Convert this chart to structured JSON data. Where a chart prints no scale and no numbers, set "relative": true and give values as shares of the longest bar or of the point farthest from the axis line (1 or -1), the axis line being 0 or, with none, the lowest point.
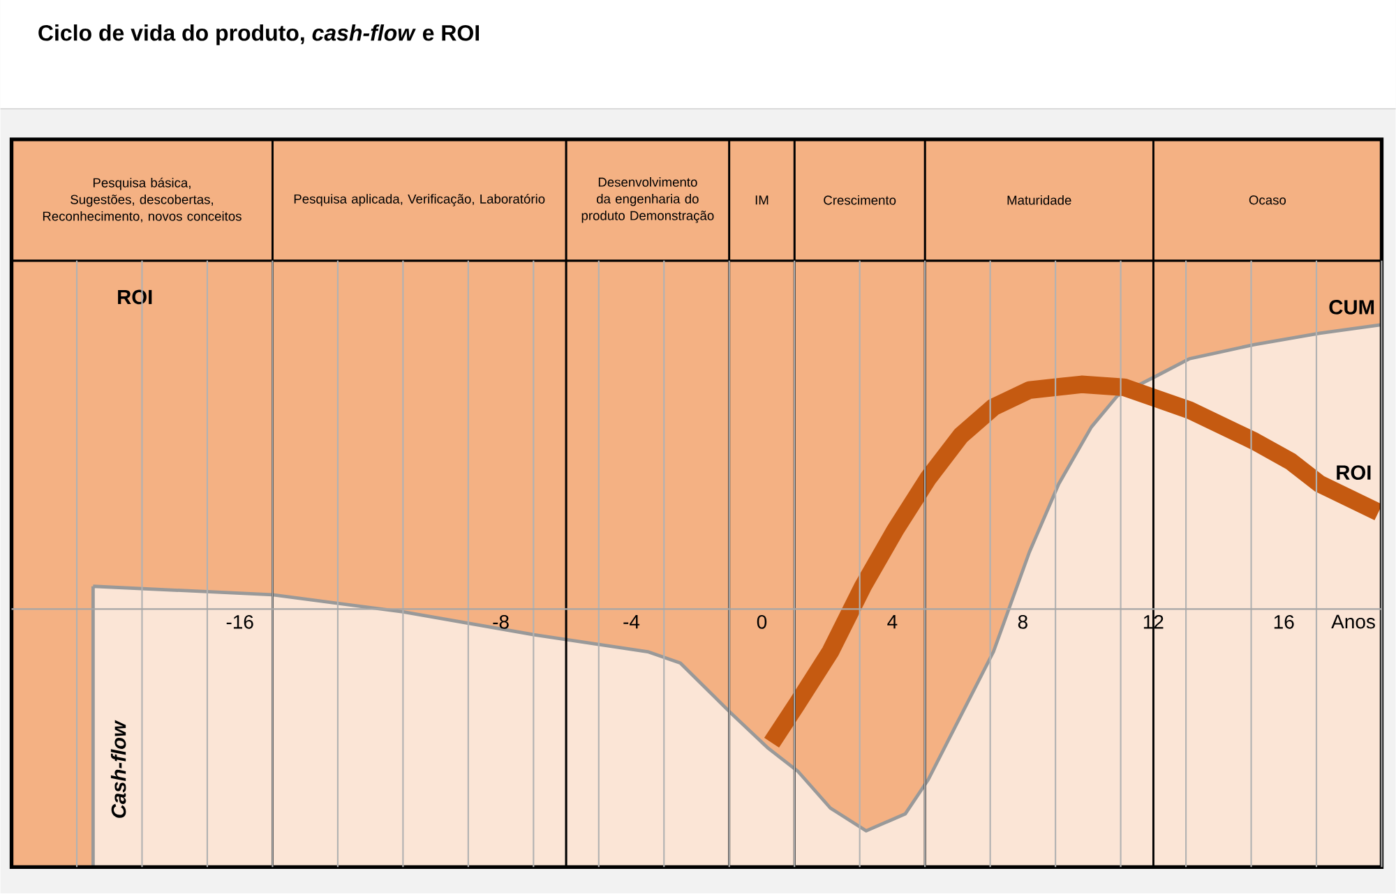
{
  "chart_data": {
    "type": "line",
    "title": "Ciclo de vida do produto, *cash-flow* e ROI",
    "xlabel": "Anos",
    "relative": true,
    "grid": "x",
    "xlim": [
      -23,
      19
    ],
    "xticks": [
      {
        "value": -21,
        "label": null
      },
      {
        "value": -19,
        "label": null
      },
      {
        "value": -17,
        "label": null
      },
      -16,
      {
        "value": -15,
        "label": null
      },
      {
        "value": -13,
        "label": null
      },
      {
        "value": -11,
        "label": null
      },
      {
        "value": -9,
        "label": null
      },
      -8,
      {
        "value": -7,
        "label": null
      },
      {
        "value": -5,
        "label": null
      },
      -4,
      {
        "value": -3,
        "label": null
      },
      {
        "value": -1,
        "label": null
      },
      0,
      {
        "value": 1,
        "label": null
      },
      {
        "value": 3,
        "label": null
      },
      4,
      {
        "value": 5,
        "label": null
      },
      {
        "value": 7,
        "label": null
      },
      8,
      {
        "value": 9,
        "label": null
      },
      {
        "value": 11,
        "label": null
      },
      12,
      {
        "value": 13,
        "label": null
      },
      {
        "value": 15,
        "label": null
      },
      16,
      {
        "value": 17,
        "label": null
      },
      {
        "value": 19,
        "label": null
      }
    ],
    "bands": [
      {
        "axis": "x",
        "from": -23,
        "to": -15,
        "label": "Pesquisa básica, Sugestões, descobertas, Reconhecimento, novos conceitos",
        "color": "#f4b183"
      },
      {
        "axis": "x",
        "from": -15,
        "to": -6,
        "label": "Pesquisa aplicada, Verificação, Laboratório",
        "color": "#f4b183"
      },
      {
        "axis": "x",
        "from": -6,
        "to": -1,
        "label": "Desenvolvimento da engenharia do produto Demonstração",
        "color": "#f4b183"
      },
      {
        "axis": "x",
        "from": -1,
        "to": 1,
        "label": "IM",
        "color": "#f4b183"
      },
      {
        "axis": "x",
        "from": 1,
        "to": 5,
        "label": "Crescimento",
        "color": "#f4b183"
      },
      {
        "axis": "x",
        "from": 5,
        "to": 12,
        "label": "Maturidade",
        "color": "#f4b183"
      },
      {
        "axis": "x",
        "from": 12,
        "to": 19,
        "label": "Ocaso",
        "color": "#f4b183"
      }
    ],
    "annotations": [
      "ROI",
      "Cash-flow"
    ],
    "series": [
      {
        "name": "CUM",
        "type": "area",
        "color": "#fbe5d6",
        "x": [
          -20.5,
          -15,
          -11,
          -7,
          -3.5,
          -2.5,
          -1,
          0.2,
          1.1,
          2.1,
          3.2,
          4.4,
          5.1,
          7.1,
          8.2,
          9.1,
          10.1,
          10.9,
          12.1,
          13.1,
          15.1,
          17.1,
          19
        ],
        "values": [
          0.08,
          0.05,
          -0.01,
          -0.09,
          -0.15,
          -0.19,
          -0.36,
          -0.49,
          -0.57,
          -0.7,
          -0.78,
          -0.72,
          -0.6,
          -0.15,
          0.2,
          0.44,
          0.64,
          0.75,
          0.82,
          0.88,
          0.93,
          0.97,
          1.0
        ]
      },
      {
        "name": "ROI",
        "color": "#c55a11",
        "x": [
          0.3,
          1.1,
          2.1,
          3.1,
          4.1,
          5.1,
          6.1,
          7.1,
          8.2,
          9.8,
          11.1,
          12.1,
          13.1,
          15.1,
          16.2,
          17.1,
          18.9
        ],
        "values": [
          -0.47,
          -0.33,
          -0.15,
          0.08,
          0.28,
          0.46,
          0.61,
          0.71,
          0.77,
          0.79,
          0.78,
          0.74,
          0.7,
          0.59,
          0.52,
          0.44,
          0.34
        ]
      }
    ]
  }
}
